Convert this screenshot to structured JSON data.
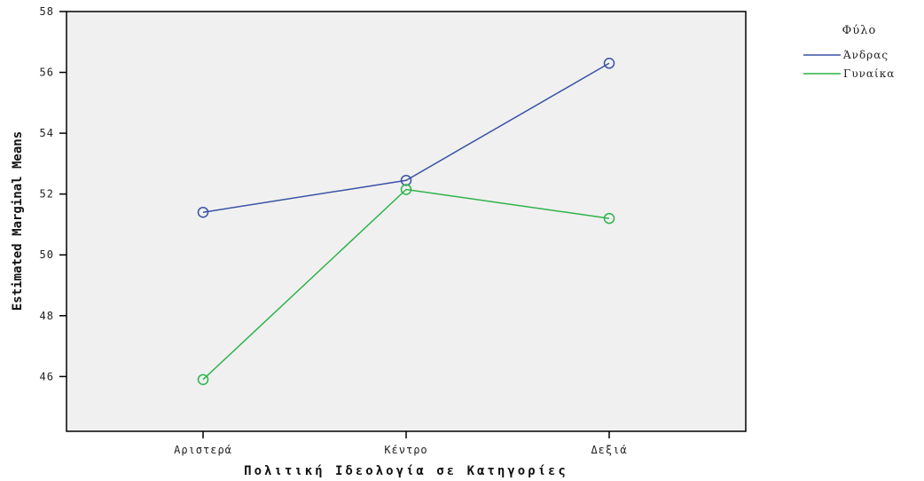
{
  "chart_data": {
    "type": "line",
    "title": "",
    "xlabel": "Πολιτική Ιδεολογία σε Κατηγορίες",
    "ylabel": "Estimated Marginal Means",
    "categories": [
      "Αριστερά",
      "Κέντρο",
      "Δεξιά"
    ],
    "ylim": [
      44.2,
      58
    ],
    "yticks": [
      46,
      48,
      50,
      52,
      54,
      56,
      58
    ],
    "grid": false,
    "legend": {
      "title": "Φύλο",
      "placement": "top-right"
    },
    "series": [
      {
        "name": "Άνδρας",
        "color": "#3a52a5",
        "values": [
          51.4,
          52.45,
          56.3
        ]
      },
      {
        "name": "Γυναίκα",
        "color": "#2db34a",
        "values": [
          45.9,
          52.15,
          51.2
        ]
      }
    ]
  }
}
